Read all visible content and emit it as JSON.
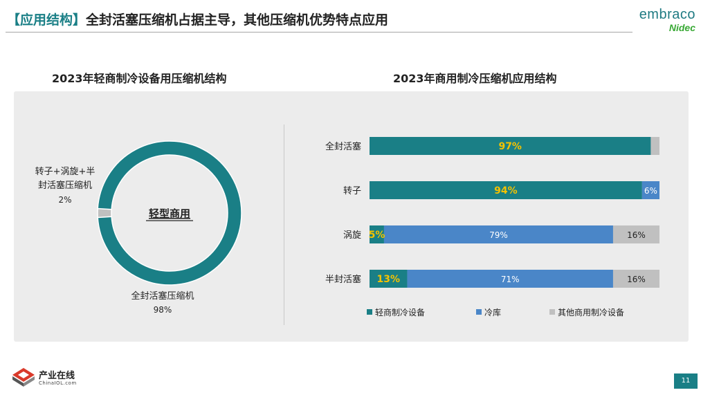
{
  "slide": {
    "title_bracket": "【应用结构】",
    "title_text": "全封活塞压缩机占据主导，其他压缩机优势特点应用",
    "logo_top": "embraco",
    "logo_bottom": "Nidec",
    "page_number": "11",
    "footer_logo_name": "产业在线",
    "footer_logo_sub": "ChinaIOL.com"
  },
  "colors": {
    "teal": "#1a7f86",
    "blue": "#4a86c8",
    "gray": "#c0c0c0",
    "label_yellow": "#f5c200",
    "panel": "#ececec"
  },
  "chart_data": [
    {
      "type": "pie",
      "subtype": "donut",
      "title": "2023年轻商制冷设备用压缩机结构",
      "center_label": "轻型商用",
      "slices": [
        {
          "label": "全封活塞压缩机",
          "value": 98,
          "value_label": "98%",
          "color": "#1a7f86"
        },
        {
          "label": "转子+涡旋+半封活塞压缩机",
          "label_lines": [
            "转子+涡旋+半",
            "封活塞压缩机"
          ],
          "value": 2,
          "value_label": "2%",
          "color": "#c0c0c0"
        }
      ]
    },
    {
      "type": "bar",
      "subtype": "stacked-horizontal-100",
      "title": "2023年商用制冷压缩机应用结构",
      "categories": [
        "全封活塞",
        "转子",
        "涡旋",
        "半封活塞"
      ],
      "series": [
        {
          "name": "轻商制冷设备",
          "color": "#1a7f86",
          "values": [
            97,
            94,
            5,
            13
          ],
          "labels": [
            "97%",
            "94%",
            "5%",
            "13%"
          ]
        },
        {
          "name": "冷库",
          "color": "#4a86c8",
          "values": [
            0,
            6,
            79,
            71
          ],
          "labels": [
            "",
            "6%",
            "79%",
            "71%"
          ]
        },
        {
          "name": "其他商用制冷设备",
          "color": "#c0c0c0",
          "values": [
            3,
            0,
            16,
            16
          ],
          "labels": [
            "",
            "",
            "16%",
            "16%"
          ]
        }
      ],
      "xlim": [
        0,
        100
      ],
      "legend": "bottom",
      "grid": false
    }
  ]
}
